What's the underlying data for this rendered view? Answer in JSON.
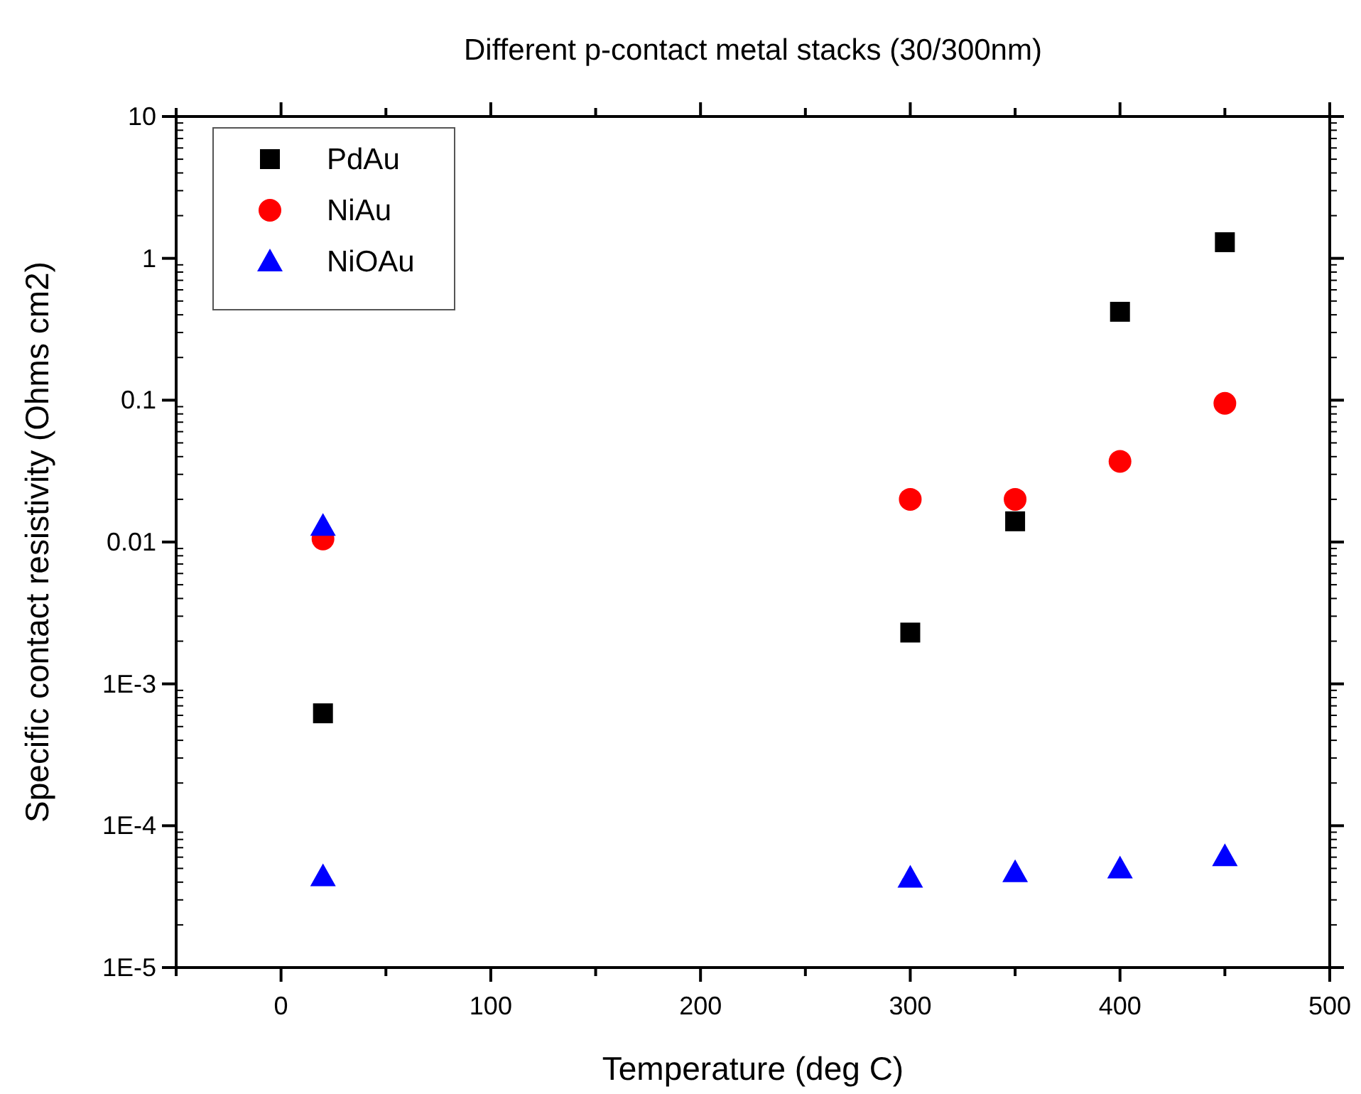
{
  "chart_data": {
    "type": "scatter",
    "title": "Different p-contact metal stacks (30/300nm)",
    "xlabel": "Temperature (deg C)",
    "ylabel": "Specific contact resistivity (Ohms cm2)",
    "log": "y",
    "legend": "top left",
    "xlim": [
      -50,
      500
    ],
    "xticks": [
      {
        "value": -50,
        "label": null
      },
      0,
      {
        "value": 50,
        "label": null
      },
      100,
      {
        "value": 150,
        "label": null
      },
      200,
      {
        "value": 250,
        "label": null
      },
      300,
      {
        "value": 350,
        "label": null
      },
      400,
      {
        "value": 450,
        "label": null
      },
      500
    ],
    "ylim": [
      1e-05,
      10
    ],
    "yticks": [
      {
        "value": 1e-05,
        "label": "1E-5"
      },
      {
        "value": 0.0001,
        "label": "1E-4"
      },
      {
        "value": 0.001,
        "label": "1E-3"
      },
      {
        "value": 0.01,
        "label": "0.01"
      },
      {
        "value": 0.1,
        "label": "0.1"
      },
      {
        "value": 1,
        "label": "1"
      },
      {
        "value": 10,
        "label": "10"
      }
    ],
    "series": [
      {
        "name": "PdAu",
        "color": "#000000",
        "marker": "square",
        "x": [
          20,
          300,
          350,
          400,
          450
        ],
        "values": [
          0.00062,
          0.0023,
          0.014,
          0.42,
          1.3
        ]
      },
      {
        "name": "NiAu",
        "color": "#ff0000",
        "marker": "circle",
        "x": [
          20,
          300,
          350,
          400,
          450
        ],
        "values": [
          0.0105,
          0.02,
          0.02,
          0.037,
          0.095
        ]
      },
      {
        "name": "NiOAu",
        "color": "#0000ff",
        "marker": "triangle",
        "x": [
          20,
          20,
          300,
          350,
          400,
          450
        ],
        "values": [
          0.013,
          4.4e-05,
          4.3e-05,
          4.7e-05,
          5e-05,
          6.1e-05
        ]
      }
    ]
  }
}
